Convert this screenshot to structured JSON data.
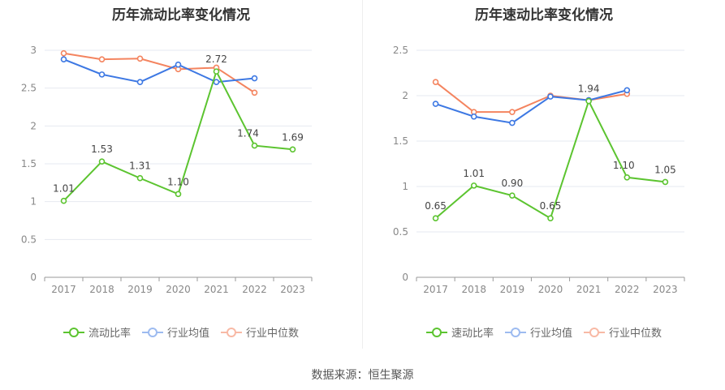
{
  "source_label": "数据来源：恒生聚源",
  "charts": [
    {
      "title": "历年流动比率变化情况",
      "chart_data": {
        "type": "line",
        "categories": [
          "2017",
          "2018",
          "2019",
          "2020",
          "2021",
          "2022",
          "2023"
        ],
        "ylim": [
          0,
          3
        ],
        "yticks": [
          "0",
          "0.5",
          "1",
          "1.5",
          "2",
          "2.5",
          "3"
        ],
        "grid": true,
        "legend_position": "bottom",
        "series": [
          {
            "name": "流动比率",
            "color": "#5cc430",
            "values": [
              1.01,
              1.53,
              1.31,
              1.1,
              2.72,
              1.74,
              1.69
            ],
            "labels": [
              "1.01",
              "1.53",
              "1.31",
              "1.10",
              "2.72",
              "1.74",
              "1.69"
            ]
          },
          {
            "name": "行业均值",
            "color": "#3d78e3",
            "values": [
              2.88,
              2.68,
              2.58,
              2.81,
              2.58,
              2.63,
              null
            ]
          },
          {
            "name": "行业中位数",
            "color": "#f4845f",
            "values": [
              2.96,
              2.88,
              2.89,
              2.75,
              2.77,
              2.44,
              null
            ]
          }
        ]
      }
    },
    {
      "title": "历年速动比率变化情况",
      "chart_data": {
        "type": "line",
        "categories": [
          "2017",
          "2018",
          "2019",
          "2020",
          "2021",
          "2022",
          "2023"
        ],
        "ylim": [
          0,
          2.5
        ],
        "yticks": [
          "0",
          "0.5",
          "1",
          "1.5",
          "2",
          "2.5"
        ],
        "grid": true,
        "legend_position": "bottom",
        "series": [
          {
            "name": "速动比率",
            "color": "#5cc430",
            "values": [
              0.65,
              1.01,
              0.9,
              0.65,
              1.94,
              1.1,
              1.05
            ],
            "labels": [
              "0.65",
              "1.01",
              "0.90",
              "0.65",
              "1.94",
              "1.10",
              "1.05"
            ]
          },
          {
            "name": "行业均值",
            "color": "#3d78e3",
            "values": [
              1.91,
              1.77,
              1.7,
              1.99,
              1.95,
              2.06,
              null
            ]
          },
          {
            "name": "行业中位数",
            "color": "#f4845f",
            "values": [
              2.15,
              1.82,
              1.82,
              2.0,
              1.95,
              2.02,
              null
            ]
          }
        ]
      }
    }
  ]
}
